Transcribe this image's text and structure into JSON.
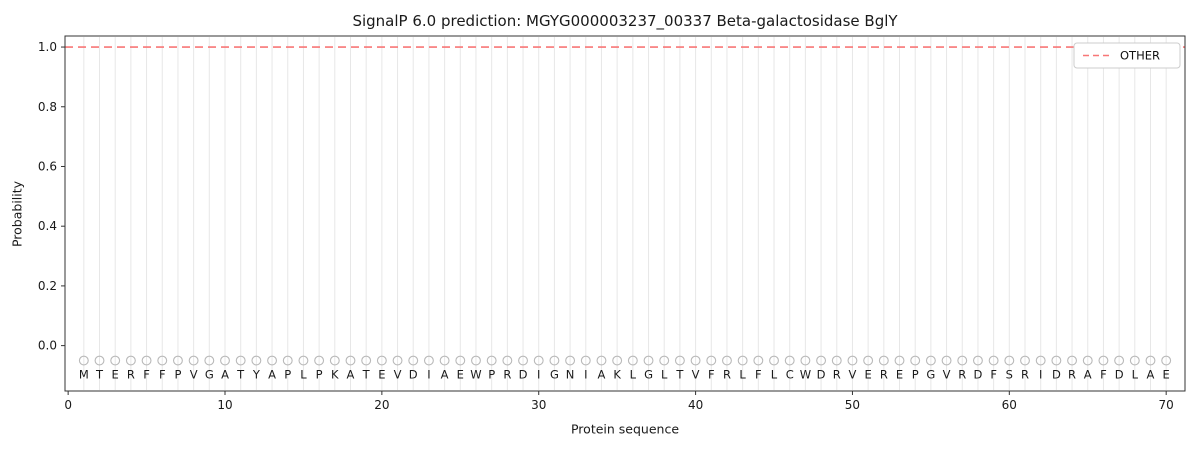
{
  "chart_data": {
    "type": "line",
    "title": "SignalP 6.0 prediction: MGYG000003237_00337 Beta-galactosidase BglY",
    "xlabel": "Protein sequence",
    "ylabel": "Probability",
    "xlim": [
      -0.2,
      71.2
    ],
    "ylim": [
      -0.152,
      1.037
    ],
    "xticks": [
      0,
      10,
      20,
      30,
      40,
      50,
      60,
      70
    ],
    "yticks": [
      0.0,
      0.2,
      0.4,
      0.6,
      0.8,
      1.0
    ],
    "grid": "vertical gridline at each residue position",
    "grid_color": "#e7e7e7",
    "sequence": "MTERFFPVGATYAPLPKATEVDIAEWPRDIGNIAKLGLTVFRLFLCWDRVEREPGVRDFSRIDRAFDLAE",
    "series": [
      {
        "name": "OTHER",
        "style": "dashed",
        "color": "#f87777",
        "constant_value": 1.0,
        "n_points": 70
      }
    ],
    "residue_markers": {
      "shape": "open-circle",
      "color": "#b9b9b9",
      "value": -0.05
    },
    "legend": {
      "position": "upper right",
      "entries": [
        {
          "label": "OTHER",
          "color": "#f87777",
          "style": "dashed"
        }
      ]
    }
  }
}
